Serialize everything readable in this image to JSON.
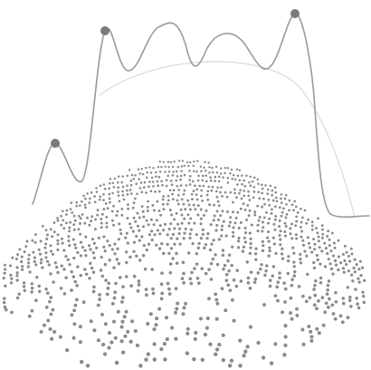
{
  "colors": {
    "background": "#ffffff",
    "dots": "#8a8a8a",
    "curve": "#9a9a9a",
    "faint_arc": "#d2d2d2",
    "markers": "#7a7a7a"
  },
  "icons": {
    "peak_marker": "filled-circle-marker",
    "globe": "dotted-hemisphere"
  }
}
